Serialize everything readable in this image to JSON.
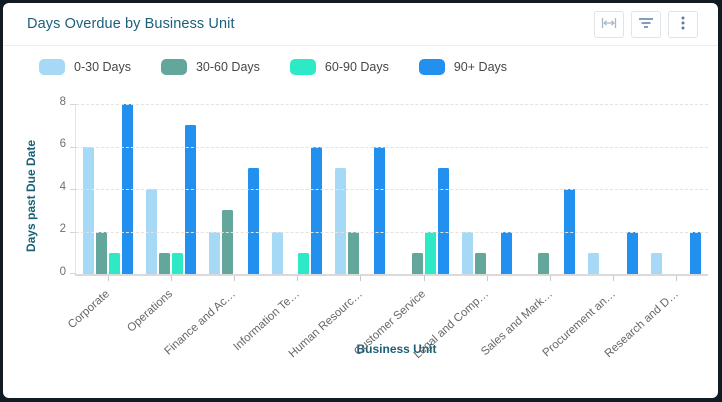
{
  "header": {
    "title": "Days Overdue by Business Unit"
  },
  "toolbar": {
    "icons": [
      "fit-width-icon",
      "filter-icon",
      "kebab-menu-icon"
    ]
  },
  "legend": [
    {
      "label": "0-30 Days",
      "color": "#a5d9f5"
    },
    {
      "label": "30-60 Days",
      "color": "#63a79c"
    },
    {
      "label": "60-90 Days",
      "color": "#2de9c5"
    },
    {
      "label": "90+ Days",
      "color": "#2190ee"
    }
  ],
  "chart_data": {
    "type": "bar",
    "title": "Days Overdue by Business Unit",
    "xlabel": "Business Unit",
    "ylabel": "Days past Due Date",
    "ylim": [
      0,
      8
    ],
    "yticks": [
      0,
      2,
      4,
      6,
      8
    ],
    "grid": true,
    "legend_position": "top",
    "categories": [
      "Corporate",
      "Operations",
      "Finance and Ac…",
      "Information Te…",
      "Human Resourc…",
      "Customer Service",
      "Legal and Comp…",
      "Sales and Mark…",
      "Procurement an…",
      "Research and D…"
    ],
    "series": [
      {
        "name": "0-30 Days",
        "color": "#a5d9f5",
        "values": [
          6,
          4,
          2,
          2,
          5,
          0,
          2,
          0,
          1,
          1
        ]
      },
      {
        "name": "30-60 Days",
        "color": "#63a79c",
        "values": [
          2,
          1,
          3,
          0,
          2,
          1,
          1,
          1,
          0,
          0
        ]
      },
      {
        "name": "60-90 Days",
        "color": "#2de9c5",
        "values": [
          1,
          1,
          0,
          1,
          0,
          2,
          0,
          0,
          0,
          0
        ]
      },
      {
        "name": "90+ Days",
        "color": "#2190ee",
        "values": [
          8,
          7,
          5,
          6,
          6,
          5,
          2,
          4,
          2,
          2
        ]
      }
    ]
  },
  "colors": {
    "frame": "#121a22",
    "card_bg": "#ffffff",
    "title_teal": "#1b607b",
    "axis_title_teal": "#1a6078",
    "tick_label": "#707070",
    "gridline": "#e2e2e2",
    "icon_active": "#5e7e9b",
    "icon_disabled": "#a8b7c6"
  }
}
